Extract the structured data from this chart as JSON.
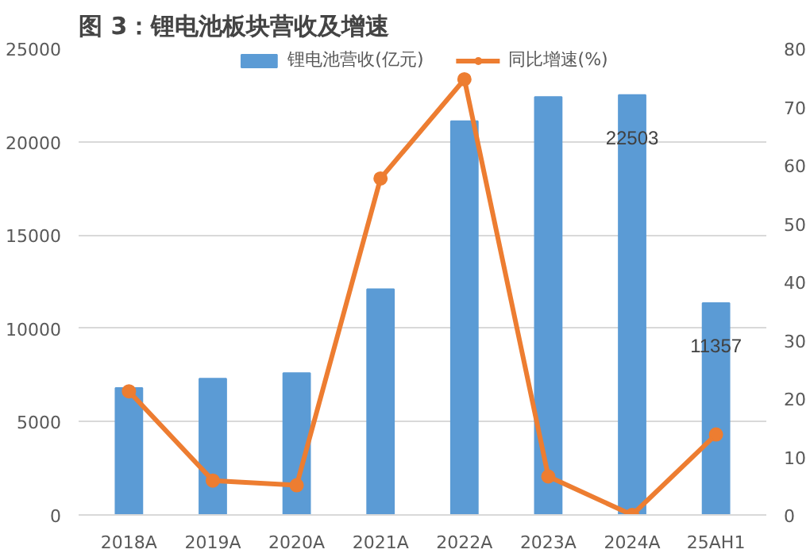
{
  "chart_data": {
    "type": "bar",
    "title": "图 3：锂电池板块营收及增速",
    "categories": [
      "2018A",
      "2019A",
      "2020A",
      "2021A",
      "2022A",
      "2023A",
      "2024A",
      "25AH1"
    ],
    "series": [
      {
        "name": "锂电池营收(亿元)",
        "color": "#5b9bd5",
        "values": [
          6800,
          7300,
          7600,
          12100,
          21100,
          22400,
          22503,
          11357
        ],
        "value_labels": [
          null,
          null,
          null,
          null,
          null,
          null,
          "22503",
          "11357"
        ]
      },
      {
        "name": "同比增速(%)",
        "type": "line",
        "axis": "y2",
        "color": "#ed7d31",
        "marker": "circle",
        "values": [
          21.2,
          5.9,
          5.1,
          57.7,
          74.7,
          6.6,
          0,
          13.8
        ]
      }
    ],
    "ylim": [
      0,
      25000
    ],
    "yticks": [
      0,
      5000,
      10000,
      15000,
      20000,
      25000
    ],
    "y2lim": [
      0,
      80
    ],
    "y2ticks": [
      0,
      10,
      20,
      30,
      40,
      50,
      60,
      70,
      80
    ],
    "grid": "y",
    "legend": "top"
  }
}
